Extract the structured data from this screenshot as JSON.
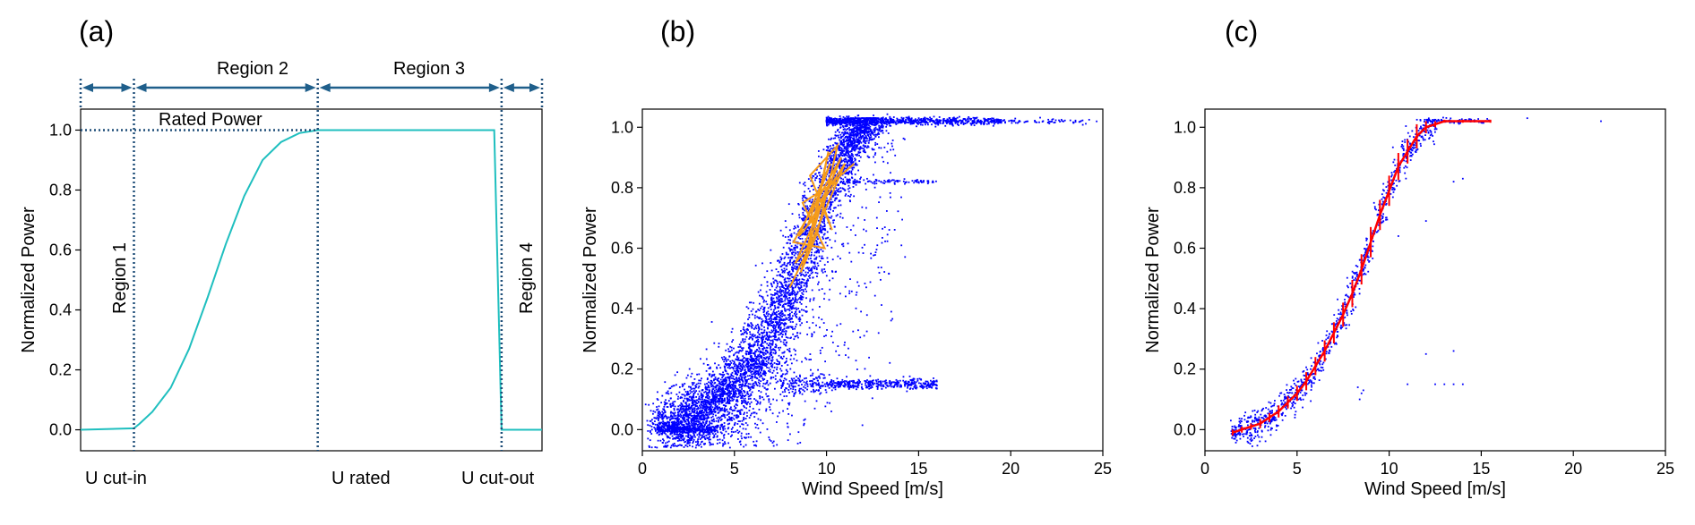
{
  "panel_a": {
    "label": "(a)",
    "regions": [
      "Region 1",
      "Region 2",
      "Region 3",
      "Region 4"
    ],
    "rated_label": "Rated Power",
    "xmarkers": [
      "U cut-in",
      "U rated",
      "U cut-out"
    ],
    "ylabel": "Normalized Power"
  },
  "panel_b": {
    "label": "(b)",
    "xlabel": "Wind Speed [m/s]",
    "ylabel": "Normalized Power"
  },
  "panel_c": {
    "label": "(c)",
    "xlabel": "Wind Speed [m/s]",
    "ylabel": "Normalized Power"
  },
  "colors": {
    "curve": "#1fbfbf",
    "dotted": "#1f4e79",
    "arrow": "#1f5f8b",
    "scatter": "#0000ff",
    "orange": "#f59b1a",
    "red": "#ff0000"
  },
  "chart_data": [
    {
      "type": "line",
      "title": "",
      "ylabel": "Normalized Power",
      "ylim": [
        -0.07,
        1.07
      ],
      "yticks": [
        "0.0",
        "0.2",
        "0.4",
        "0.6",
        "0.8",
        "1.0"
      ],
      "x_tick_labels": [
        "U cut-in",
        "U rated",
        "U cut-out"
      ],
      "x_unit": "cut-in = 0, rated = 1, cut-out = 2",
      "curve": [
        [
          -0.29,
          0.0
        ],
        [
          0.0,
          0.005
        ],
        [
          0.03,
          0.02
        ],
        [
          0.1,
          0.06
        ],
        [
          0.2,
          0.14
        ],
        [
          0.3,
          0.27
        ],
        [
          0.4,
          0.44
        ],
        [
          0.5,
          0.62
        ],
        [
          0.6,
          0.78
        ],
        [
          0.7,
          0.9
        ],
        [
          0.8,
          0.96
        ],
        [
          0.9,
          0.99
        ],
        [
          1.0,
          1.0
        ],
        [
          1.96,
          1.0
        ],
        [
          2.0,
          0.0
        ],
        [
          2.22,
          0.0
        ]
      ],
      "rated_power": 1.0
    },
    {
      "type": "scatter",
      "title": "",
      "xlabel": "Wind Speed [m/s]",
      "ylabel": "Normalized Power",
      "xlim": [
        0,
        25
      ],
      "ylim": [
        -0.07,
        1.06
      ],
      "xticks": [
        0,
        5,
        10,
        15,
        20,
        25
      ],
      "yticks": [
        "0.0",
        "0.2",
        "0.4",
        "0.6",
        "0.8",
        "1.0"
      ],
      "scatter_color": "#0000ff",
      "description_of_density": "dense power-curve cloud 1-12 m/s, plateau near 1.02 to 25 m/s, curtailed band near 0.15 (8-16 m/s), band near 0.82 (11-16 m/s)",
      "orange_path": [
        [
          8.0,
          0.47
        ],
        [
          9.2,
          0.62
        ],
        [
          8.3,
          0.55
        ],
        [
          9.6,
          0.72
        ],
        [
          8.5,
          0.64
        ],
        [
          10.2,
          0.88
        ],
        [
          9.0,
          0.68
        ],
        [
          10.5,
          0.82
        ],
        [
          8.7,
          0.75
        ],
        [
          9.9,
          0.6
        ],
        [
          8.2,
          0.62
        ],
        [
          10.8,
          0.9
        ],
        [
          9.4,
          0.7
        ],
        [
          10.1,
          0.92
        ],
        [
          8.9,
          0.58
        ],
        [
          11.0,
          0.88
        ],
        [
          9.7,
          0.76
        ],
        [
          10.3,
          0.66
        ],
        [
          9.1,
          0.84
        ],
        [
          10.6,
          0.94
        ],
        [
          9.5,
          0.65
        ],
        [
          8.6,
          0.52
        ],
        [
          10.0,
          0.8
        ],
        [
          11.5,
          0.88
        ]
      ]
    },
    {
      "type": "scatter",
      "title": "",
      "xlabel": "Wind Speed [m/s]",
      "ylabel": "Normalized Power",
      "xlim": [
        0,
        25
      ],
      "ylim": [
        -0.07,
        1.06
      ],
      "xticks": [
        0,
        5,
        10,
        15,
        20,
        25
      ],
      "yticks": [
        "0.0",
        "0.2",
        "0.4",
        "0.6",
        "0.8",
        "1.0"
      ],
      "mean_curve": {
        "x": [
          1.5,
          2,
          2.5,
          3,
          3.5,
          4,
          4.5,
          5,
          5.5,
          6,
          6.5,
          7,
          7.5,
          8,
          8.5,
          9,
          9.5,
          10,
          10.5,
          11,
          11.5,
          12,
          12.5,
          13,
          14,
          15.5
        ],
        "y": [
          -0.01,
          0.0,
          0.01,
          0.02,
          0.04,
          0.06,
          0.09,
          0.12,
          0.16,
          0.21,
          0.26,
          0.32,
          0.38,
          0.45,
          0.53,
          0.62,
          0.71,
          0.79,
          0.87,
          0.92,
          0.97,
          1.0,
          1.01,
          1.02,
          1.02,
          1.02
        ],
        "err": [
          0.01,
          0.01,
          0.01,
          0.015,
          0.015,
          0.02,
          0.02,
          0.025,
          0.03,
          0.03,
          0.035,
          0.035,
          0.04,
          0.045,
          0.05,
          0.05,
          0.05,
          0.05,
          0.045,
          0.04,
          0.04,
          0.02,
          0.01,
          0.005,
          0.005,
          0.005
        ],
        "color": "#ff0000"
      },
      "outliers": [
        [
          8.3,
          0.14
        ],
        [
          8.5,
          0.12
        ],
        [
          8.4,
          0.1
        ],
        [
          8.6,
          0.13
        ],
        [
          12.0,
          0.25
        ],
        [
          13.0,
          0.15
        ],
        [
          13.5,
          0.15
        ],
        [
          14.0,
          0.15
        ],
        [
          12.5,
          0.15
        ],
        [
          11.0,
          0.15
        ],
        [
          12.0,
          0.69
        ],
        [
          14.0,
          0.83
        ],
        [
          13.5,
          0.82
        ],
        [
          17.5,
          1.03
        ],
        [
          21.5,
          1.02
        ],
        [
          13.5,
          0.26
        ],
        [
          10.5,
          0.64
        ]
      ]
    }
  ]
}
